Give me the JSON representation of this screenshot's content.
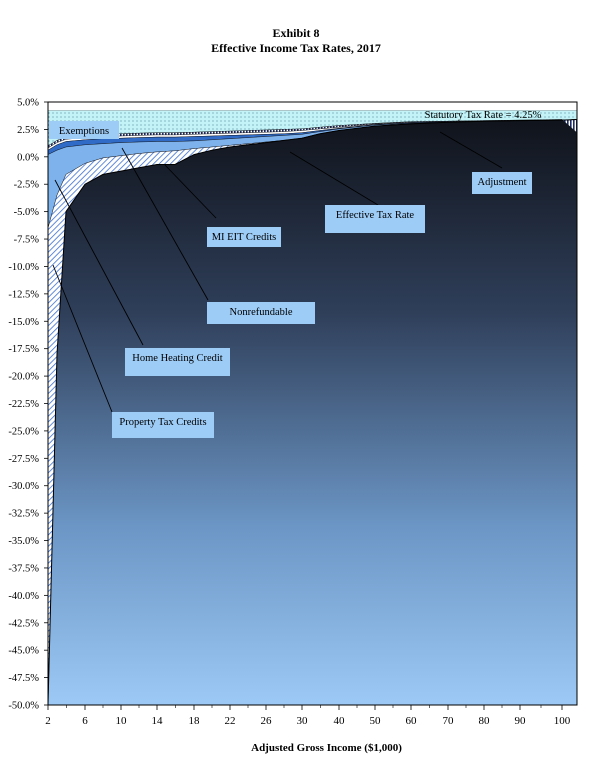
{
  "chart_data": {
    "type": "area",
    "title": "Exhibit 8",
    "subtitle": "Effective Income Tax Rates, 2017",
    "xlabel": "Adjusted Gross Income ($1,000)",
    "ylabel": "",
    "x_tick_labels": [
      "2",
      "6",
      "10",
      "14",
      "18",
      "22",
      "26",
      "30",
      "40",
      "50",
      "60",
      "70",
      "80",
      "90",
      "100"
    ],
    "y_tick_labels": [
      "5.0%",
      "2.5%",
      "0.0%",
      "-2.5%",
      "-5.0%",
      "-7.5%",
      "-10.0%",
      "-12.5%",
      "-15.0%",
      "-17.5%",
      "-20.0%",
      "-22.5%",
      "-25.0%",
      "-27.5%",
      "-30.0%",
      "-32.5%",
      "-35.0%",
      "-37.5%",
      "-40.0%",
      "-42.5%",
      "-45.0%",
      "-47.5%",
      "-50.0%"
    ],
    "ylim": [
      -50,
      5
    ],
    "grid": false,
    "statutory_rate_label": "Statutory Tax Rate = 4.25%",
    "statutory_rate": 4.25,
    "x": [
      "2",
      "3",
      "4",
      "6",
      "8",
      "10",
      "12",
      "14",
      "16",
      "18",
      "20",
      "22",
      "24",
      "26",
      "28",
      "30",
      "35",
      "40",
      "50",
      "60",
      "70",
      "80",
      "90",
      "100",
      "100+"
    ],
    "series": [
      {
        "name": "Effective Tax Rate",
        "values": [
          -50,
          -18,
          -5,
          -2.5,
          -1.6,
          -1.3,
          -1.0,
          -0.7,
          -0.7,
          0.2,
          0.6,
          0.9,
          1.1,
          1.3,
          1.5,
          1.7,
          2.1,
          2.4,
          2.8,
          3.0,
          3.15,
          3.25,
          3.3,
          3.35,
          3.4
        ]
      },
      {
        "name": "Property Tax Credits",
        "values": [
          -6.5,
          -3.5,
          -1.6,
          -0.6,
          -0.1,
          0.1,
          0.3,
          0.45,
          0.55,
          0.75,
          0.9,
          1.05,
          1.2,
          1.35,
          1.5,
          1.7,
          2.1,
          2.4,
          2.8,
          3.0,
          3.15,
          3.25,
          3.3,
          3.35,
          3.4
        ]
      },
      {
        "name": "Home Heating Credit",
        "values": [
          0.2,
          0.6,
          0.9,
          1.1,
          1.2,
          1.3,
          1.35,
          1.4,
          1.4,
          1.45,
          1.55,
          1.65,
          1.75,
          1.85,
          1.95,
          2.05,
          2.3,
          2.55,
          2.9,
          3.05,
          3.15,
          3.25,
          3.3,
          3.35,
          3.4
        ]
      },
      {
        "name": "MI EIT Credits",
        "values": [
          0.6,
          1.1,
          1.4,
          1.55,
          1.65,
          1.7,
          1.75,
          1.8,
          1.8,
          1.85,
          1.9,
          1.95,
          2.0,
          2.05,
          2.1,
          2.2,
          2.4,
          2.6,
          2.95,
          3.1,
          3.2,
          3.25,
          3.3,
          3.35,
          3.4
        ]
      },
      {
        "name": "Nonrefundable",
        "values": [
          0.8,
          1.3,
          1.6,
          1.75,
          1.85,
          1.9,
          1.95,
          2.0,
          2.0,
          2.05,
          2.1,
          2.15,
          2.2,
          2.25,
          2.3,
          2.4,
          2.55,
          2.7,
          3.0,
          3.15,
          3.2,
          3.25,
          3.3,
          3.35,
          3.4
        ]
      },
      {
        "name": "Exemptions",
        "values": [
          1.0,
          1.5,
          1.8,
          1.95,
          2.05,
          2.1,
          2.15,
          2.2,
          2.2,
          2.25,
          2.3,
          2.35,
          2.4,
          2.45,
          2.5,
          2.55,
          2.7,
          2.85,
          3.05,
          3.2,
          3.25,
          3.3,
          3.35,
          3.4,
          2.2
        ]
      },
      {
        "name": "Adjustment",
        "values": [
          4.25,
          4.25,
          4.25,
          4.25,
          4.25,
          4.25,
          4.25,
          4.25,
          4.25,
          4.25,
          4.25,
          4.25,
          4.25,
          4.25,
          4.25,
          4.25,
          4.25,
          4.25,
          4.25,
          4.25,
          4.25,
          4.25,
          4.25,
          4.25,
          4.25
        ]
      }
    ],
    "annotations": [
      "Exemptions",
      "Adjustment",
      "Effective Tax Rate",
      "MI EIT Credits",
      "Nonrefundable",
      "Home Heating Credit",
      "Property Tax Credits"
    ],
    "colors": {
      "bg_top": "#0f1117",
      "bg_bottom": "#9ac8f5",
      "label_box": "#9dccf7",
      "exemptions": "#1c2f72",
      "adjustment": "#bff2f5",
      "nonrefundable": "#ffffff",
      "mi_eit": "#2f6bc7",
      "home_heating": "#7eb4ee",
      "property_tax": "#ffffff"
    }
  }
}
